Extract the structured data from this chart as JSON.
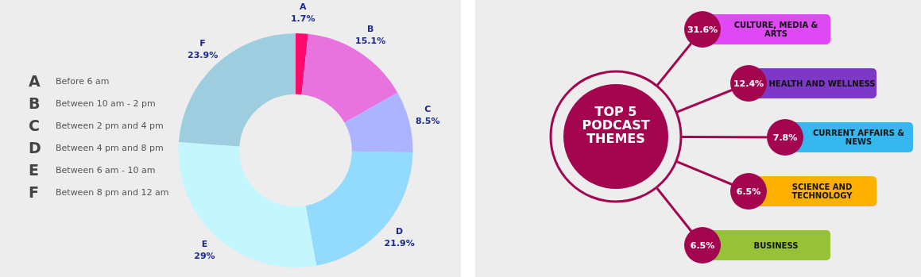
{
  "chart_data": [
    {
      "type": "donut",
      "categories": [
        "A",
        "B",
        "C",
        "D",
        "E",
        "F"
      ],
      "values": [
        1.7,
        15.1,
        8.5,
        21.9,
        29,
        23.9
      ],
      "colors": [
        "#fe0a6c",
        "#e873df",
        "#acb3ff",
        "#92dbff",
        "#c3f7fd",
        "#9fcde0"
      ],
      "value_labels": [
        "1.7%",
        "15.1%",
        "8.5%",
        "21.9%",
        "29%",
        "23.9%"
      ],
      "annotations": [
        "Before 6 am",
        "Between 10 am - 2 pm",
        "Between 2 pm and 4 pm",
        "Between 4 pm and 8 pm",
        "Between 6 am - 10 am",
        "Between 8 pm and 12 am"
      ]
    },
    {
      "type": "other",
      "title": "TOP 5 PODCAST THEMES",
      "categories": [
        "CULTURE, MEDIA & ARTS",
        "HEALTH AND WELLNESS",
        "CURRENT AFFAIRS & NEWS",
        "SCIENCE AND TECHNOLOGY",
        "BUSINESS"
      ],
      "value_labels": [
        "31.6%",
        "12.4%",
        "7.8%",
        "6.5%",
        "6.5%"
      ],
      "colors": [
        "#de48f5",
        "#7e38c7",
        "#36b7ef",
        "#fdb000",
        "#97c137"
      ]
    }
  ]
}
